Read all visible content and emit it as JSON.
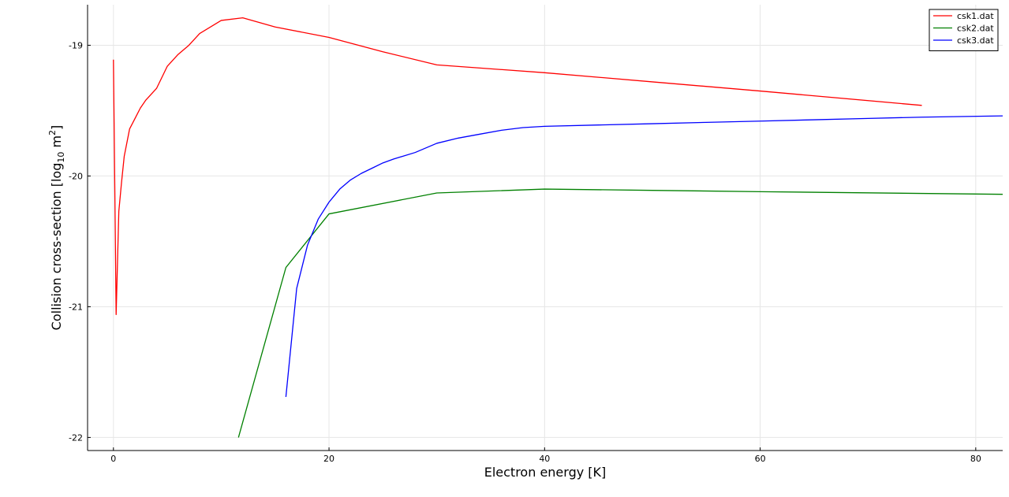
{
  "chart_data": {
    "type": "line",
    "xlabel": "Electron energy [K]",
    "ylabel_parts": {
      "pre": "Collision cross-section [log",
      "sub": "10",
      "mid": " m",
      "sup": "2",
      "post": "]"
    },
    "xlim": [
      -2.4,
      82.5
    ],
    "ylim": [
      -22.1,
      -18.69
    ],
    "xticks": [
      0,
      20,
      40,
      60,
      80
    ],
    "xtick_labels": [
      "0",
      "20",
      "40",
      "60",
      "80"
    ],
    "yticks": [
      -22,
      -21,
      -20,
      -19
    ],
    "ytick_labels": [
      "-22",
      "-21",
      "-20",
      "-19"
    ],
    "grid": true,
    "legend_position": "top-right",
    "series": [
      {
        "name": "csk1.dat",
        "color": "#ff0000",
        "x": [
          0,
          0.25,
          0.5,
          0.75,
          1.0,
          1.5,
          2.0,
          2.5,
          3.0,
          4.0,
          5.0,
          6.0,
          7.0,
          8.0,
          10.0,
          12.0,
          15.0,
          20.0,
          25.0,
          30.0,
          40.0,
          50.0,
          60.0,
          75.0
        ],
        "y": [
          -19.11,
          -21.06,
          -20.27,
          -20.05,
          -19.85,
          -19.64,
          -19.56,
          -19.48,
          -19.42,
          -19.33,
          -19.16,
          -19.07,
          -19.0,
          -18.91,
          -18.81,
          -18.79,
          -18.86,
          -18.94,
          -19.05,
          -19.15,
          -19.21,
          -19.28,
          -19.35,
          -19.46
        ]
      },
      {
        "name": "csk2.dat",
        "color": "#008000",
        "x": [
          11.6,
          16.0,
          20.0,
          30.0,
          40.0,
          50.0,
          60.0,
          82.5
        ],
        "y": [
          -22.0,
          -20.7,
          -20.29,
          -20.13,
          -20.1,
          -20.11,
          -20.12,
          -20.14
        ]
      },
      {
        "name": "csk3.dat",
        "color": "#0000ff",
        "x": [
          16.0,
          17.0,
          18.0,
          19.0,
          20.0,
          21.0,
          22.0,
          23.0,
          24.0,
          25.0,
          26.0,
          28.0,
          30.0,
          32.0,
          34.0,
          36.0,
          38.0,
          40.0,
          45.0,
          50.0,
          55.0,
          60.0,
          65.0,
          70.0,
          75.0,
          82.5
        ],
        "y": [
          -21.69,
          -20.86,
          -20.53,
          -20.33,
          -20.2,
          -20.1,
          -20.03,
          -19.98,
          -19.94,
          -19.9,
          -19.87,
          -19.82,
          -19.75,
          -19.71,
          -19.68,
          -19.65,
          -19.63,
          -19.62,
          -19.61,
          -19.6,
          -19.59,
          -19.58,
          -19.57,
          -19.56,
          -19.55,
          -19.54
        ]
      }
    ]
  }
}
